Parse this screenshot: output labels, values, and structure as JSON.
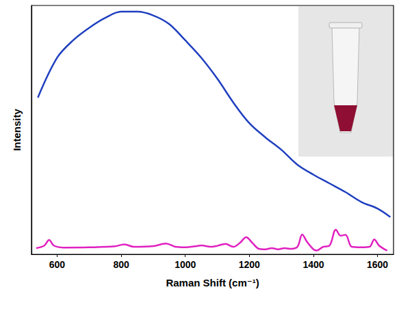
{
  "chart_data": {
    "type": "line",
    "x_label": "Raman Shift (cm⁻¹)",
    "y_label": "Intensity",
    "xlim": [
      520,
      1650
    ],
    "xticks": [
      600,
      800,
      1000,
      1200,
      1400,
      1600
    ],
    "ylim": [
      0,
      100
    ],
    "tick_labels": "x",
    "grid": false,
    "series": [
      {
        "color": "#1f3fbf",
        "x": [
          540,
          600,
          650,
          700,
          750,
          800,
          850,
          900,
          950,
          1000,
          1050,
          1100,
          1150,
          1200,
          1250,
          1300,
          1350,
          1400,
          1450,
          1500,
          1550,
          1600,
          1640
        ],
        "values": [
          63,
          79,
          86,
          91,
          95,
          97.5,
          97.5,
          96,
          92.5,
          86,
          79,
          70.6,
          61,
          52.7,
          47,
          42,
          36,
          32,
          28.5,
          25,
          21,
          18.4,
          15
        ]
      },
      {
        "color": "#e020c0",
        "x": [
          535,
          560,
          575,
          590,
          620,
          700,
          780,
          810,
          840,
          900,
          940,
          970,
          1000,
          1030,
          1050,
          1080,
          1100,
          1125,
          1150,
          1170,
          1190,
          1210,
          1230,
          1250,
          1270,
          1290,
          1310,
          1330,
          1350,
          1365,
          1380,
          1400,
          1410,
          1430,
          1450,
          1470,
          1485,
          1500,
          1520,
          1550,
          1575,
          1590,
          1605,
          1630
        ],
        "values": [
          2.5,
          3.5,
          5.8,
          3.5,
          2.7,
          2.8,
          3.2,
          4,
          3,
          3.3,
          4.3,
          3,
          2.8,
          3.2,
          3.6,
          3,
          3.4,
          4.2,
          3,
          4.5,
          6.9,
          4.5,
          2.2,
          2,
          2.5,
          2,
          2.5,
          2.2,
          3,
          8,
          5,
          2,
          1.5,
          3,
          3.5,
          9.9,
          7.5,
          7.8,
          3,
          2.8,
          3,
          6,
          3.5,
          1.5
        ]
      }
    ]
  }
}
